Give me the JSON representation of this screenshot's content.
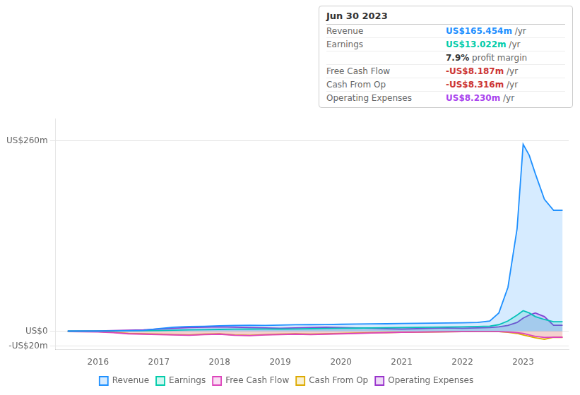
{
  "chart_data": {
    "type": "line",
    "title": "Jun 30 2023",
    "x": [
      2015.5,
      2016.0,
      2016.25,
      2016.5,
      2016.75,
      2017.0,
      2017.25,
      2017.5,
      2017.75,
      2018.0,
      2018.25,
      2018.5,
      2018.75,
      2019.0,
      2019.25,
      2019.5,
      2019.75,
      2020.0,
      2020.25,
      2020.5,
      2020.75,
      2021.0,
      2021.25,
      2021.5,
      2021.75,
      2022.0,
      2022.25,
      2022.45,
      2022.6,
      2022.75,
      2022.9,
      2023.0,
      2023.1,
      2023.2,
      2023.35,
      2023.5,
      2023.65
    ],
    "series": [
      {
        "name": "Revenue",
        "color": "#1e90ff",
        "values": [
          0.2,
          0.3,
          0.5,
          0.8,
          1.2,
          3.5,
          5.5,
          6.5,
          6.8,
          7.5,
          7.8,
          8.2,
          8.0,
          8.5,
          8.8,
          9.0,
          9.2,
          9.5,
          9.8,
          10.0,
          10.2,
          10.5,
          10.8,
          11.0,
          11.2,
          11.5,
          12.0,
          14.0,
          25.0,
          60.0,
          140.0,
          255.0,
          240.0,
          215.0,
          180.0,
          165.0,
          165.0
        ]
      },
      {
        "name": "Earnings",
        "color": "#00ccaa",
        "values": [
          0.1,
          0.2,
          0.3,
          0.5,
          0.8,
          1.0,
          1.5,
          2.0,
          2.2,
          2.5,
          2.8,
          3.0,
          3.2,
          3.0,
          3.2,
          3.5,
          3.8,
          4.0,
          4.2,
          4.5,
          4.8,
          5.0,
          5.2,
          5.5,
          5.8,
          6.0,
          6.5,
          7.0,
          9.0,
          14.0,
          22.0,
          28.0,
          25.0,
          20.0,
          16.0,
          13.0,
          13.0
        ]
      },
      {
        "name": "Free Cash Flow",
        "color": "#dd44bb",
        "values": [
          -0.5,
          -1.0,
          -2.0,
          -3.5,
          -4.0,
          -4.5,
          -5.0,
          -5.5,
          -4.5,
          -4.0,
          -5.5,
          -6.0,
          -5.0,
          -4.5,
          -4.0,
          -4.5,
          -4.0,
          -3.5,
          -3.0,
          -2.5,
          -2.0,
          -1.5,
          -1.2,
          -1.0,
          -0.8,
          -0.5,
          -0.3,
          -0.2,
          -0.5,
          -1.0,
          -2.0,
          -3.0,
          -5.0,
          -7.0,
          -8.5,
          -8.2,
          -8.2
        ]
      },
      {
        "name": "Cash From Op",
        "color": "#ddaa00",
        "values": [
          -0.3,
          -0.5,
          -1.5,
          -3.0,
          -3.5,
          -4.0,
          -4.5,
          -5.0,
          -4.0,
          -3.5,
          -5.0,
          -5.5,
          -4.5,
          -4.0,
          -3.5,
          -4.0,
          -3.5,
          -3.0,
          -2.5,
          -2.0,
          -1.8,
          -1.5,
          -1.2,
          -1.0,
          -0.8,
          -0.5,
          -0.3,
          -0.2,
          -0.5,
          -1.5,
          -3.0,
          -5.0,
          -7.0,
          -9.0,
          -11.0,
          -8.3,
          -8.3
        ]
      },
      {
        "name": "Operating Expenses",
        "color": "#9933cc",
        "values": [
          0.3,
          0.5,
          1.0,
          1.5,
          2.0,
          3.0,
          4.0,
          5.0,
          5.5,
          6.0,
          5.5,
          5.0,
          4.5,
          4.0,
          4.5,
          5.0,
          5.5,
          5.0,
          4.5,
          4.0,
          3.5,
          3.0,
          3.5,
          4.0,
          4.5,
          4.0,
          4.5,
          5.0,
          6.0,
          8.0,
          12.0,
          18.0,
          22.0,
          25.0,
          20.0,
          8.2,
          8.2
        ]
      }
    ],
    "xlim": [
      2015.3,
      2023.75
    ],
    "xticks": [
      2016,
      2017,
      2018,
      2019,
      2020,
      2021,
      2022,
      2023
    ],
    "ylim": [
      -25,
      290
    ],
    "yticks": [
      {
        "value": -20,
        "label": "-US$20m"
      },
      {
        "value": 0,
        "label": "US$0"
      },
      {
        "value": 260,
        "label": "US$260m"
      }
    ],
    "grid": true,
    "legend": "bottom",
    "annotations": [
      {
        "label": "Revenue",
        "value": "US$165.454m",
        "suffix": " /yr",
        "color": "#1e90ff"
      },
      {
        "label": "Earnings",
        "value": "US$13.022m",
        "suffix": " /yr",
        "color": "#00ccaa"
      },
      {
        "value": "7.9%",
        "suffix": " profit margin"
      },
      {
        "label": "Free Cash Flow",
        "value": "-US$8.187m",
        "suffix": " /yr",
        "color": "#cc3333"
      },
      {
        "label": "Cash From Op",
        "value": "-US$8.316m",
        "suffix": " /yr",
        "color": "#cc3333"
      },
      {
        "label": "Operating Expenses",
        "value": "US$8.230m",
        "suffix": " /yr",
        "color": "#aa44ee"
      }
    ]
  }
}
